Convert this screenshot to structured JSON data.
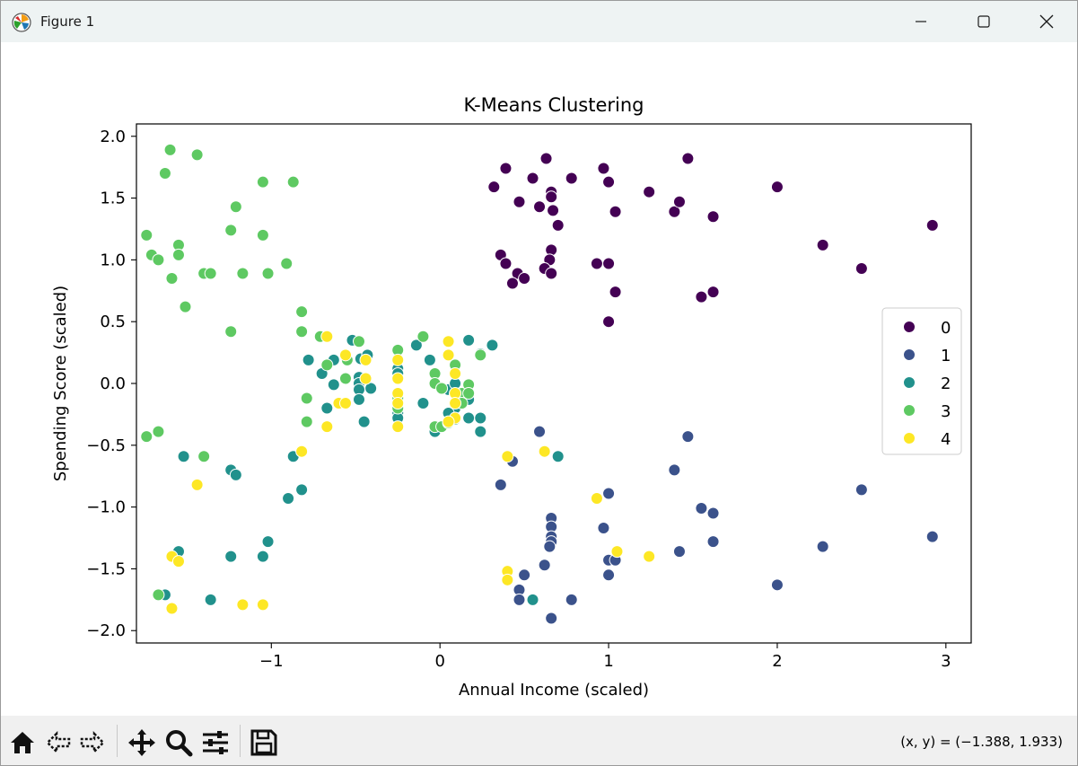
{
  "window": {
    "title": "Figure 1"
  },
  "toolbar": {
    "buttons": [
      "home-icon",
      "back-arrow-icon",
      "forward-arrow-icon",
      "pan-icon",
      "zoom-icon",
      "configure-subplots-icon",
      "save-icon"
    ],
    "coords_text": "(x, y) = (−1.388, 1.933)"
  },
  "colors": {
    "cluster_0": "#440154",
    "cluster_1": "#3b528b",
    "cluster_2": "#21918c",
    "cluster_3": "#5ec962",
    "cluster_4": "#fde725"
  },
  "chart_data": {
    "type": "scatter",
    "title": "K-Means Clustering",
    "xlabel": "Annual Income (scaled)",
    "ylabel": "Spending Score (scaled)",
    "xlim": [
      -1.8,
      3.15
    ],
    "ylim": [
      -2.1,
      2.1
    ],
    "x_ticks": [
      -1,
      0,
      1,
      2,
      3
    ],
    "x_tick_labels": [
      "−1",
      "0",
      "1",
      "2",
      "3"
    ],
    "y_ticks": [
      -2.0,
      -1.5,
      -1.0,
      -0.5,
      0.0,
      0.5,
      1.0,
      1.5,
      2.0
    ],
    "y_tick_labels": [
      "−2.0",
      "−1.5",
      "−1.0",
      "−0.5",
      "0.0",
      "0.5",
      "1.0",
      "1.5",
      "2.0"
    ],
    "legend": {
      "placement": "center-right",
      "labels": [
        "0",
        "1",
        "2",
        "3",
        "4"
      ]
    },
    "grid": false,
    "series": [
      {
        "name": "0",
        "color": "#440154",
        "points": [
          [
            0.32,
            1.59
          ],
          [
            0.39,
            1.74
          ],
          [
            0.55,
            1.66
          ],
          [
            0.63,
            1.82
          ],
          [
            0.78,
            1.66
          ],
          [
            0.97,
            1.74
          ],
          [
            1.47,
            1.82
          ],
          [
            0.47,
            1.47
          ],
          [
            0.59,
            1.43
          ],
          [
            0.66,
            1.55
          ],
          [
            0.66,
            1.51
          ],
          [
            0.67,
            1.4
          ],
          [
            1.0,
            1.63
          ],
          [
            1.04,
            1.39
          ],
          [
            1.24,
            1.55
          ],
          [
            1.39,
            1.39
          ],
          [
            1.42,
            1.47
          ],
          [
            1.62,
            1.35
          ],
          [
            2.0,
            1.59
          ],
          [
            2.92,
            1.28
          ],
          [
            0.7,
            1.28
          ],
          [
            0.36,
            1.04
          ],
          [
            0.39,
            0.97
          ],
          [
            0.66,
            1.08
          ],
          [
            0.65,
            1.0
          ],
          [
            0.62,
            0.93
          ],
          [
            0.66,
            0.89
          ],
          [
            0.46,
            0.89
          ],
          [
            0.5,
            0.85
          ],
          [
            0.43,
            0.81
          ],
          [
            0.93,
            0.97
          ],
          [
            1.0,
            0.97
          ],
          [
            2.27,
            1.12
          ],
          [
            2.5,
            0.93
          ],
          [
            1.04,
            0.74
          ],
          [
            1.55,
            0.7
          ],
          [
            1.62,
            0.74
          ],
          [
            1.0,
            0.5
          ]
        ]
      },
      {
        "name": "1",
        "color": "#3b528b",
        "points": [
          [
            0.59,
            -0.39
          ],
          [
            0.43,
            -0.63
          ],
          [
            0.36,
            -0.82
          ],
          [
            1.47,
            -0.43
          ],
          [
            1.39,
            -0.7
          ],
          [
            1.0,
            -0.89
          ],
          [
            2.5,
            -0.86
          ],
          [
            0.66,
            -1.09
          ],
          [
            0.66,
            -1.16
          ],
          [
            0.66,
            -1.24
          ],
          [
            0.66,
            -1.28
          ],
          [
            0.65,
            -1.32
          ],
          [
            0.97,
            -1.17
          ],
          [
            1.55,
            -1.01
          ],
          [
            1.62,
            -1.05
          ],
          [
            1.62,
            -1.28
          ],
          [
            1.42,
            -1.36
          ],
          [
            1.0,
            -1.43
          ],
          [
            1.04,
            -1.43
          ],
          [
            1.0,
            -1.55
          ],
          [
            0.62,
            -1.47
          ],
          [
            0.5,
            -1.55
          ],
          [
            0.47,
            -1.67
          ],
          [
            0.47,
            -1.75
          ],
          [
            0.78,
            -1.75
          ],
          [
            0.66,
            -1.9
          ],
          [
            2.27,
            -1.32
          ],
          [
            2.92,
            -1.24
          ],
          [
            2.0,
            -1.63
          ]
        ]
      },
      {
        "name": "2",
        "color": "#21918c",
        "points": [
          [
            -0.78,
            0.19
          ],
          [
            -0.7,
            0.08
          ],
          [
            -0.63,
            0.19
          ],
          [
            -0.63,
            -0.01
          ],
          [
            -0.67,
            -0.2
          ],
          [
            -0.52,
            0.35
          ],
          [
            -0.47,
            0.2
          ],
          [
            -0.48,
            0.05
          ],
          [
            -0.48,
            0.0
          ],
          [
            -0.48,
            -0.05
          ],
          [
            -0.48,
            -0.13
          ],
          [
            -0.41,
            -0.04
          ],
          [
            -0.43,
            0.23
          ],
          [
            -0.45,
            -0.31
          ],
          [
            -0.25,
            0.12
          ],
          [
            -0.25,
            0.08
          ],
          [
            -0.25,
            -0.24
          ],
          [
            -0.25,
            -0.28
          ],
          [
            -0.14,
            0.31
          ],
          [
            -0.06,
            0.19
          ],
          [
            -0.1,
            -0.16
          ],
          [
            0.05,
            -0.05
          ],
          [
            0.09,
            0.0
          ],
          [
            0.09,
            -0.09
          ],
          [
            0.09,
            -0.2
          ],
          [
            0.05,
            -0.24
          ],
          [
            0.09,
            -0.29
          ],
          [
            0.17,
            -0.28
          ],
          [
            0.17,
            -0.13
          ],
          [
            0.17,
            0.35
          ],
          [
            0.24,
            0.24
          ],
          [
            0.31,
            0.31
          ],
          [
            0.24,
            -0.28
          ],
          [
            0.24,
            -0.39
          ],
          [
            0.7,
            -0.59
          ],
          [
            -0.03,
            -0.39
          ],
          [
            -0.87,
            -0.59
          ],
          [
            -0.9,
            -0.93
          ],
          [
            -0.82,
            -0.86
          ],
          [
            -1.24,
            -0.7
          ],
          [
            -1.21,
            -0.74
          ],
          [
            -1.52,
            -0.59
          ],
          [
            -1.55,
            -1.36
          ],
          [
            -1.24,
            -1.4
          ],
          [
            -1.05,
            -1.4
          ],
          [
            -1.02,
            -1.28
          ],
          [
            -1.63,
            -1.71
          ],
          [
            -1.36,
            -1.75
          ],
          [
            0.55,
            -1.75
          ]
        ]
      },
      {
        "name": "3",
        "color": "#5ec962",
        "points": [
          [
            -1.6,
            1.89
          ],
          [
            -1.44,
            1.85
          ],
          [
            -1.63,
            1.7
          ],
          [
            -1.05,
            1.63
          ],
          [
            -0.87,
            1.63
          ],
          [
            -1.21,
            1.43
          ],
          [
            -1.74,
            1.2
          ],
          [
            -1.24,
            1.24
          ],
          [
            -1.05,
            1.2
          ],
          [
            -1.55,
            1.12
          ],
          [
            -1.71,
            1.04
          ],
          [
            -1.55,
            1.04
          ],
          [
            -1.67,
            1.0
          ],
          [
            -0.91,
            0.97
          ],
          [
            -1.4,
            0.89
          ],
          [
            -1.36,
            0.89
          ],
          [
            -1.17,
            0.89
          ],
          [
            -1.02,
            0.89
          ],
          [
            -1.59,
            0.85
          ],
          [
            -1.51,
            0.62
          ],
          [
            -0.82,
            0.58
          ],
          [
            -1.24,
            0.42
          ],
          [
            -0.82,
            0.42
          ],
          [
            -0.71,
            0.38
          ],
          [
            -0.67,
            0.15
          ],
          [
            -0.55,
            0.19
          ],
          [
            -0.48,
            0.34
          ],
          [
            -0.56,
            0.04
          ],
          [
            -0.25,
            0.27
          ],
          [
            -0.1,
            0.38
          ],
          [
            -0.25,
            -0.12
          ],
          [
            -0.25,
            -0.2
          ],
          [
            -0.03,
            -0.35
          ],
          [
            -0.03,
            0.08
          ],
          [
            -0.03,
            0.0
          ],
          [
            0.01,
            -0.04
          ],
          [
            0.01,
            -0.35
          ],
          [
            0.05,
            -0.32
          ],
          [
            0.13,
            -0.08
          ],
          [
            0.13,
            -0.16
          ],
          [
            0.17,
            -0.01
          ],
          [
            0.17,
            -0.08
          ],
          [
            0.09,
            0.15
          ],
          [
            0.24,
            0.23
          ],
          [
            -0.79,
            -0.12
          ],
          [
            -0.79,
            -0.31
          ],
          [
            -1.74,
            -0.43
          ],
          [
            -1.67,
            -0.39
          ],
          [
            -1.4,
            -0.59
          ],
          [
            -1.67,
            -1.71
          ]
        ]
      },
      {
        "name": "4",
        "color": "#fde725",
        "points": [
          [
            -0.67,
            0.38
          ],
          [
            -0.56,
            0.23
          ],
          [
            -0.44,
            0.19
          ],
          [
            -0.44,
            0.04
          ],
          [
            -0.25,
            0.19
          ],
          [
            -0.25,
            0.04
          ],
          [
            -0.25,
            -0.08
          ],
          [
            -0.25,
            -0.16
          ],
          [
            -0.25,
            -0.35
          ],
          [
            -0.6,
            -0.16
          ],
          [
            -0.56,
            -0.16
          ],
          [
            -0.67,
            -0.35
          ],
          [
            0.05,
            0.23
          ],
          [
            0.05,
            0.34
          ],
          [
            0.09,
            0.08
          ],
          [
            0.09,
            -0.08
          ],
          [
            0.09,
            -0.16
          ],
          [
            0.09,
            -0.28
          ],
          [
            0.05,
            -0.31
          ],
          [
            0.4,
            -0.59
          ],
          [
            0.62,
            -0.55
          ],
          [
            0.93,
            -0.93
          ],
          [
            1.05,
            -1.36
          ],
          [
            1.24,
            -1.4
          ],
          [
            0.4,
            -1.52
          ],
          [
            0.4,
            -1.59
          ],
          [
            -0.82,
            -0.55
          ],
          [
            -1.44,
            -0.82
          ],
          [
            -1.59,
            -1.4
          ],
          [
            -1.55,
            -1.44
          ],
          [
            -1.59,
            -1.82
          ],
          [
            -1.17,
            -1.79
          ],
          [
            -1.05,
            -1.79
          ]
        ]
      }
    ]
  }
}
